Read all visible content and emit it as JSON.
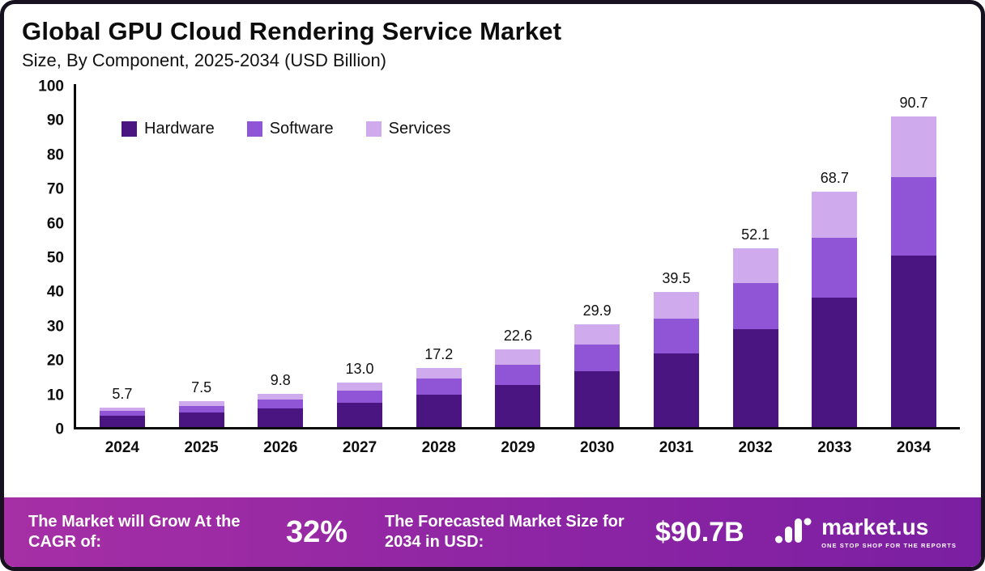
{
  "header": {
    "title": "Global GPU Cloud Rendering Service Market",
    "subtitle": "Size, By Component, 2025-2034 (USD Billion)"
  },
  "chart_data": {
    "type": "bar",
    "stacked": true,
    "title": "Global GPU Cloud Rendering Service Market",
    "subtitle": "Size, By Component, 2025-2034 (USD Billion)",
    "categories": [
      "2024",
      "2025",
      "2026",
      "2027",
      "2028",
      "2029",
      "2030",
      "2031",
      "2032",
      "2033",
      "2034"
    ],
    "totals": [
      5.7,
      7.5,
      9.8,
      13.0,
      17.2,
      22.6,
      29.9,
      39.5,
      52.1,
      68.7,
      90.7
    ],
    "total_labels": [
      "5.7",
      "7.5",
      "9.8",
      "13.0",
      "17.2",
      "22.6",
      "29.9",
      "39.5",
      "52.1",
      "68.7",
      "90.7"
    ],
    "series": [
      {
        "name": "Hardware",
        "color": "#4a1580",
        "values": [
          3.2,
          4.2,
          5.5,
          7.2,
          9.5,
          12.2,
          16.2,
          21.5,
          28.6,
          37.8,
          50.0
        ]
      },
      {
        "name": "Software",
        "color": "#8f55d6",
        "values": [
          1.5,
          2.0,
          2.6,
          3.5,
          4.6,
          6.0,
          7.8,
          10.2,
          13.3,
          17.5,
          23.0
        ]
      },
      {
        "name": "Services",
        "color": "#cfaaec",
        "values": [
          1.0,
          1.3,
          1.7,
          2.3,
          3.1,
          4.4,
          5.9,
          7.8,
          10.2,
          13.4,
          17.7
        ]
      }
    ],
    "xlabel": "",
    "ylabel": "",
    "ylim": [
      0,
      100
    ],
    "yticks": [
      0,
      10,
      20,
      30,
      40,
      50,
      60,
      70,
      80,
      90,
      100
    ],
    "grid": false,
    "legend_position": "top-left-inside"
  },
  "footer": {
    "cagr_label": "The Market will Grow At the CAGR of:",
    "cagr_value": "32%",
    "forecast_label": "The Forecasted Market Size for 2034 in USD:",
    "forecast_value": "$90.7B",
    "brand_name": "market.us",
    "brand_tagline": "ONE STOP SHOP FOR THE REPORTS"
  },
  "colors": {
    "hardware": "#4a1580",
    "software": "#8f55d6",
    "services": "#cfaaec",
    "footer_gradient_left": "#a62fa5",
    "footer_gradient_right": "#7b1fa2",
    "frame_border": "#171120",
    "axis": "#0a0a0a"
  }
}
